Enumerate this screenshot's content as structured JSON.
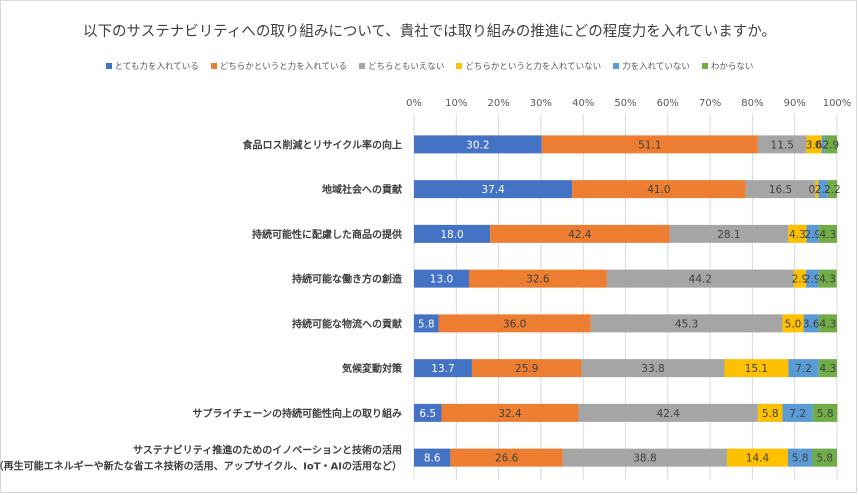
{
  "chart_data": {
    "type": "bar",
    "orientation": "horizontal-stacked-100",
    "title": "以下のサステナビリティへの取り組みについて、貴社では取り組みの推進にどの程度力を入れていますか。",
    "xlim": [
      0,
      100
    ],
    "x_ticks": [
      "0%",
      "10%",
      "20%",
      "30%",
      "40%",
      "50%",
      "60%",
      "70%",
      "80%",
      "90%",
      "100%"
    ],
    "legend_position": "top",
    "categories": [
      [
        "食品ロス削減とリサイクル率の向上"
      ],
      [
        "地域社会への貢献"
      ],
      [
        "持続可能性に配慮した商品の提供"
      ],
      [
        "持続可能な働き方の創造"
      ],
      [
        "持続可能な物流への貢献"
      ],
      [
        "気候変動対策"
      ],
      [
        "サプライチェーンの持続可能性向上の取り組み"
      ],
      [
        "サステナビリティ推進のためのイノベーションと技術の活用",
        "（再生可能エネルギーや新たな省エネ技術の活用、アップサイクル、IoT・AIの活用など）"
      ]
    ],
    "series": [
      {
        "name": "とても力を入れている",
        "color": "#4472C4",
        "label_color": "#ffffff",
        "values": [
          30.2,
          37.4,
          18.0,
          13.0,
          5.8,
          13.7,
          6.5,
          8.6
        ]
      },
      {
        "name": "どちらかというと力を入れている",
        "color": "#ED7D31",
        "label_color": "#404040",
        "values": [
          51.1,
          41.0,
          42.4,
          32.6,
          36.0,
          25.9,
          32.4,
          26.6
        ]
      },
      {
        "name": "どちらともいえない",
        "color": "#A5A5A5",
        "label_color": "#404040",
        "values": [
          11.5,
          16.5,
          28.1,
          44.2,
          45.3,
          33.8,
          42.4,
          38.8
        ]
      },
      {
        "name": "どちらかというと力を入れていない",
        "color": "#FFC000",
        "label_color": "#404040",
        "values": [
          3.6,
          0.7,
          4.3,
          2.9,
          5.0,
          15.1,
          5.8,
          14.4
        ]
      },
      {
        "name": "力を入れていない",
        "color": "#5B9BD5",
        "label_color": "#404040",
        "values": [
          0.7,
          2.2,
          2.9,
          2.9,
          3.6,
          7.2,
          7.2,
          5.8
        ]
      },
      {
        "name": "わからない",
        "color": "#70AD47",
        "label_color": "#404040",
        "values": [
          2.9,
          2.2,
          4.3,
          4.3,
          4.3,
          4.3,
          5.8,
          5.8
        ]
      }
    ]
  }
}
